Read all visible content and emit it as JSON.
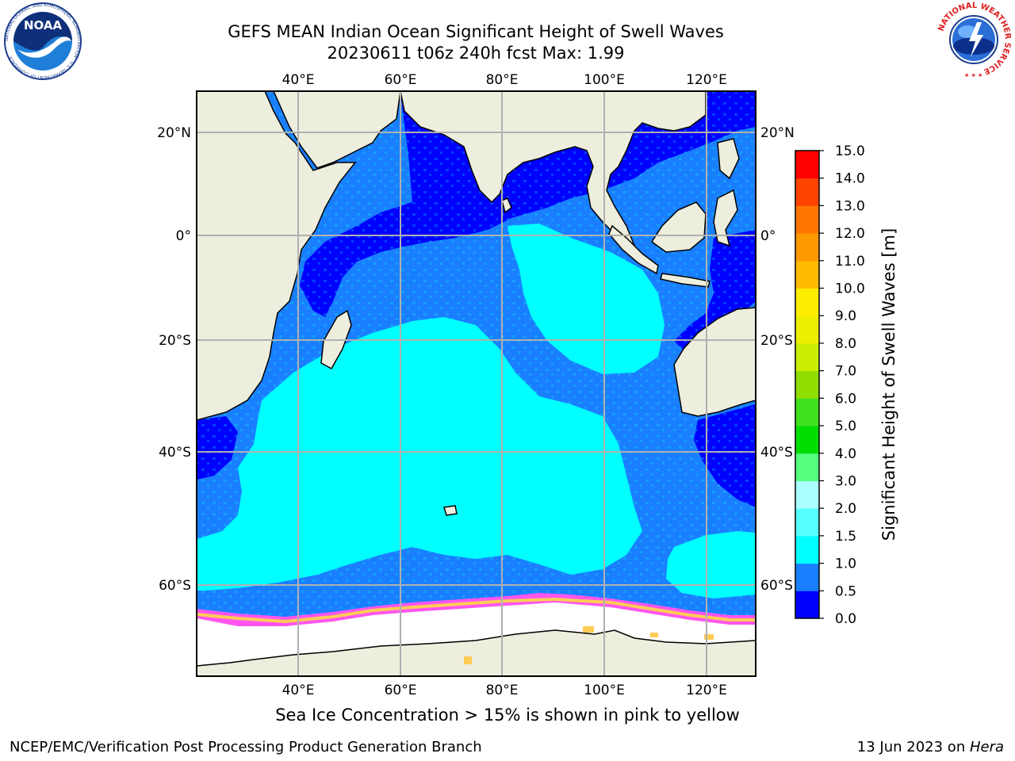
{
  "title": {
    "line1": "GEFS MEAN Indian Ocean Significant Height of Swell Waves",
    "line2": "20230611 t06z 240h fcst   Max: 1.99"
  },
  "map": {
    "lon_ticks": [
      "40°E",
      "60°E",
      "80°E",
      "100°E",
      "120°E"
    ],
    "lat_ticks": [
      "20°N",
      "0°",
      "20°S",
      "40°S",
      "60°S"
    ],
    "colors": {
      "land": "#EEEEDE",
      "sea_ice": "#FFFFFF",
      "grid": "#B0B0B0"
    }
  },
  "colorbar": {
    "label": "Significant Height of Swell Waves [m]",
    "tick_labels": [
      "0.0",
      "0.5",
      "1.0",
      "1.5",
      "2.0",
      "3.0",
      "4.0",
      "5.0",
      "6.0",
      "7.0",
      "8.0",
      "9.0",
      "10.0",
      "11.0",
      "12.0",
      "13.0",
      "14.0",
      "15.0"
    ],
    "colors": [
      "#0000FF",
      "#1A7FFF",
      "#00FFFF",
      "#55FFFF",
      "#AAFFFF",
      "#55FF80",
      "#00DD00",
      "#40E020",
      "#90DD00",
      "#CCEE00",
      "#EEEE00",
      "#FFEE00",
      "#FFBB00",
      "#FF9900",
      "#FF7700",
      "#FF4400",
      "#FF0000"
    ]
  },
  "caption": "Sea Ice Concentration > 15% is shown in pink to yellow",
  "footer": {
    "left": "NCEP/EMC/Verification Post Processing Product Generation Branch",
    "right_date": "13 Jun 2023 on ",
    "right_host": "Hera"
  },
  "logos": {
    "noaa": "NOAA",
    "noaa_ring": "NATIONAL OCEANIC AND ATMOSPHERIC ADMINISTRATION · U.S. DEPARTMENT OF COMMERCE",
    "nws_ring": "NATIONAL WEATHER SERVICE"
  }
}
